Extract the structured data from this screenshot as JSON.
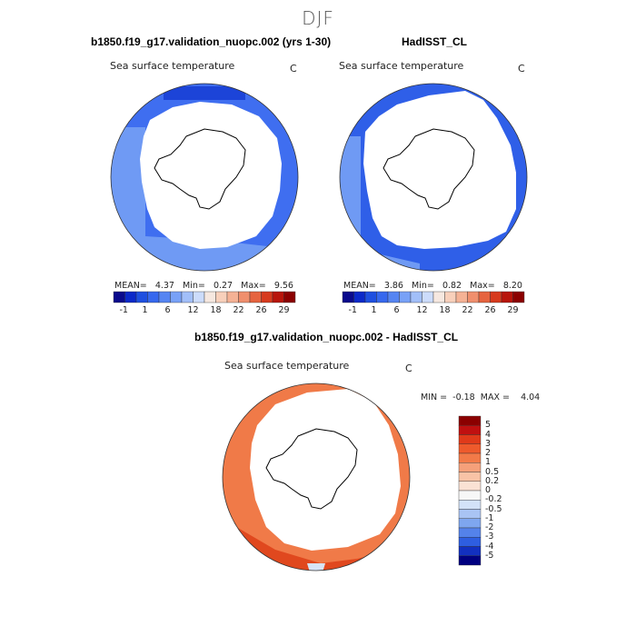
{
  "season": "DJF",
  "panel_model": {
    "title": "b1850.f19_g17.validation_nuopc.002 (yrs 1-30)",
    "variable": "Sea surface temperature",
    "units": "C",
    "stats": {
      "mean_label": "MEAN=",
      "mean": "4.37",
      "min_label": "Min=",
      "min": "0.27",
      "max_label": "Max=",
      "max": "9.56"
    }
  },
  "panel_obs": {
    "title": "HadISST_CL",
    "variable": "Sea surface temperature",
    "units": "C",
    "stats": {
      "mean_label": "MEAN=",
      "mean": "3.86",
      "min_label": "Min=",
      "min": "0.82",
      "max_label": "Max=",
      "max": "8.20"
    }
  },
  "panel_diff": {
    "title": "b1850.f19_g17.validation_nuopc.002 - HadISST_CL",
    "variable": "Sea surface temperature",
    "units": "C",
    "stats": {
      "min_label": "MIN =",
      "min": "-0.18",
      "max_label": "MAX =",
      "max": "4.04"
    }
  },
  "chart_data": [
    {
      "type": "heatmap",
      "projection": "south polar stereographic",
      "title": "b1850.f19_g17.validation_nuopc.002 (yrs 1-30)",
      "variable": "Sea surface temperature",
      "units": "C",
      "colorbar_orientation": "horizontal",
      "colorbar_labels": [
        "-1",
        "1",
        "6",
        "12",
        "18",
        "22",
        "26",
        "29"
      ],
      "colorbar_colors": [
        "#0a0a8c",
        "#0b29c9",
        "#1e4fe0",
        "#3668ee",
        "#5585f2",
        "#78a1f7",
        "#a2bff9",
        "#ccdcfb",
        "#f6e8e0",
        "#f8d0bb",
        "#f5b295",
        "#f08f6d",
        "#e6643f",
        "#d73a1d",
        "#b8150b",
        "#8b0000"
      ],
      "mean": 4.37,
      "min": 0.27,
      "max": 9.56,
      "dominant_color": "#3f6ef0",
      "secondary_color": "#6f9af4"
    },
    {
      "type": "heatmap",
      "projection": "south polar stereographic",
      "title": "HadISST_CL",
      "variable": "Sea surface temperature",
      "units": "C",
      "colorbar_orientation": "horizontal",
      "colorbar_labels": [
        "-1",
        "1",
        "6",
        "12",
        "18",
        "22",
        "26",
        "29"
      ],
      "colorbar_colors": [
        "#0a0a8c",
        "#0b29c9",
        "#1e4fe0",
        "#3668ee",
        "#5585f2",
        "#78a1f7",
        "#a2bff9",
        "#ccdcfb",
        "#f6e8e0",
        "#f8d0bb",
        "#f5b295",
        "#f08f6d",
        "#e6643f",
        "#d73a1d",
        "#b8150b",
        "#8b0000"
      ],
      "mean": 3.86,
      "min": 0.82,
      "max": 8.2,
      "dominant_color": "#2f5fe8",
      "secondary_color": "#6f9af4"
    },
    {
      "type": "heatmap",
      "projection": "south polar stereographic",
      "title": "b1850.f19_g17.validation_nuopc.002 - HadISST_CL",
      "variable": "Sea surface temperature",
      "units": "C",
      "colorbar_orientation": "vertical",
      "colorbar_labels": [
        "5",
        "4",
        "3",
        "2",
        "1",
        "0.5",
        "0.2",
        "0",
        "-0.2",
        "-0.5",
        "-1",
        "-2",
        "-3",
        "-4",
        "-5"
      ],
      "colorbar_colors": [
        "#8b0000",
        "#c01010",
        "#e03a1a",
        "#ee5a2c",
        "#f27a48",
        "#f5a07a",
        "#f8c3a6",
        "#fae2d4",
        "#f7f7f7",
        "#d3e2f8",
        "#a9c4f4",
        "#7ea6ef",
        "#5482ea",
        "#2e5ee0",
        "#1230c0",
        "#000080"
      ],
      "min": -0.18,
      "max": 4.04,
      "dominant_color": "#f07a48"
    }
  ]
}
